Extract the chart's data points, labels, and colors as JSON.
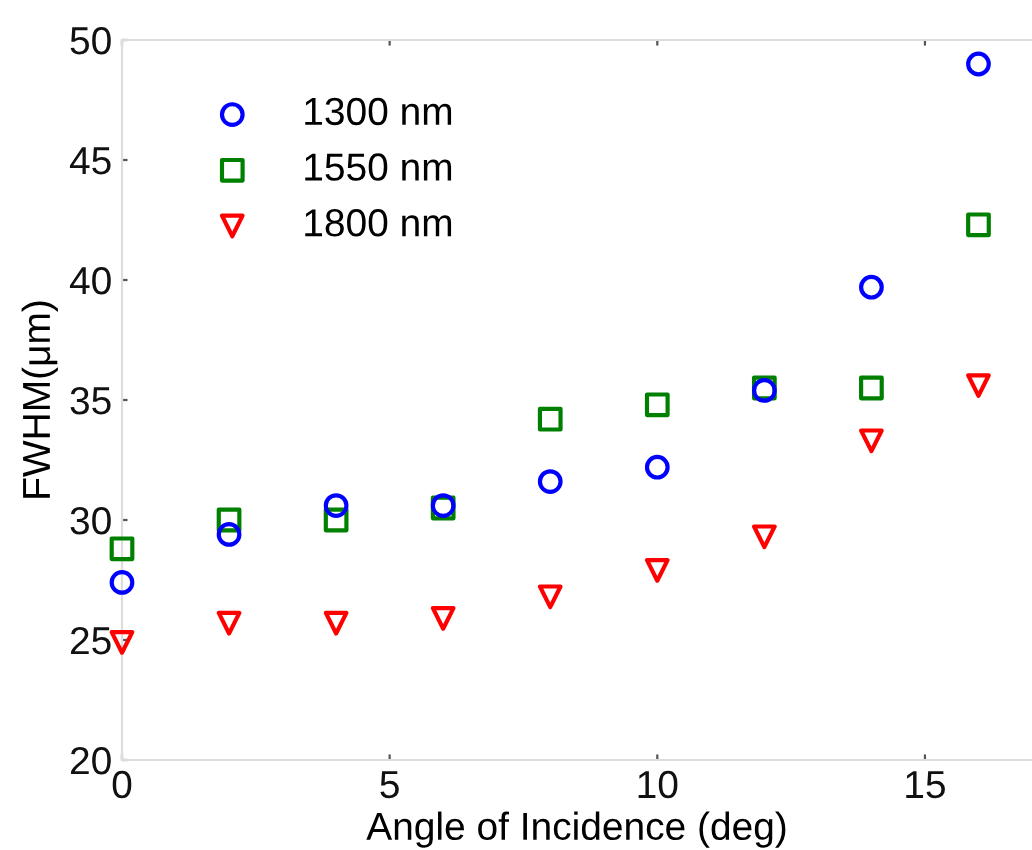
{
  "chart_data": {
    "type": "scatter",
    "xlabel": "Angle of Incidence (deg)",
    "ylabel": "FWHM(μm)",
    "x": [
      0,
      2,
      4,
      6,
      8,
      10,
      12,
      14,
      16
    ],
    "series": [
      {
        "name": "1300 nm",
        "color": "#0000ff",
        "marker": "circle",
        "values": [
          27.4,
          29.4,
          30.6,
          30.6,
          31.6,
          32.2,
          35.4,
          39.7,
          49.0
        ]
      },
      {
        "name": "1550 nm",
        "color": "#008000",
        "marker": "square",
        "values": [
          28.8,
          30.0,
          30.0,
          30.5,
          34.2,
          34.8,
          35.5,
          35.5,
          42.3
        ]
      },
      {
        "name": "1800 nm",
        "color": "#ff0000",
        "marker": "triangle",
        "values": [
          24.9,
          25.7,
          25.7,
          25.9,
          26.8,
          27.9,
          29.3,
          33.3,
          35.6
        ]
      }
    ],
    "xlim": [
      0,
      17
    ],
    "xticks": [
      0,
      5,
      10,
      15
    ],
    "ylim": [
      20,
      50
    ],
    "yticks": [
      20,
      25,
      30,
      35,
      40,
      45,
      50
    ],
    "grid": false,
    "legend": "top left"
  }
}
